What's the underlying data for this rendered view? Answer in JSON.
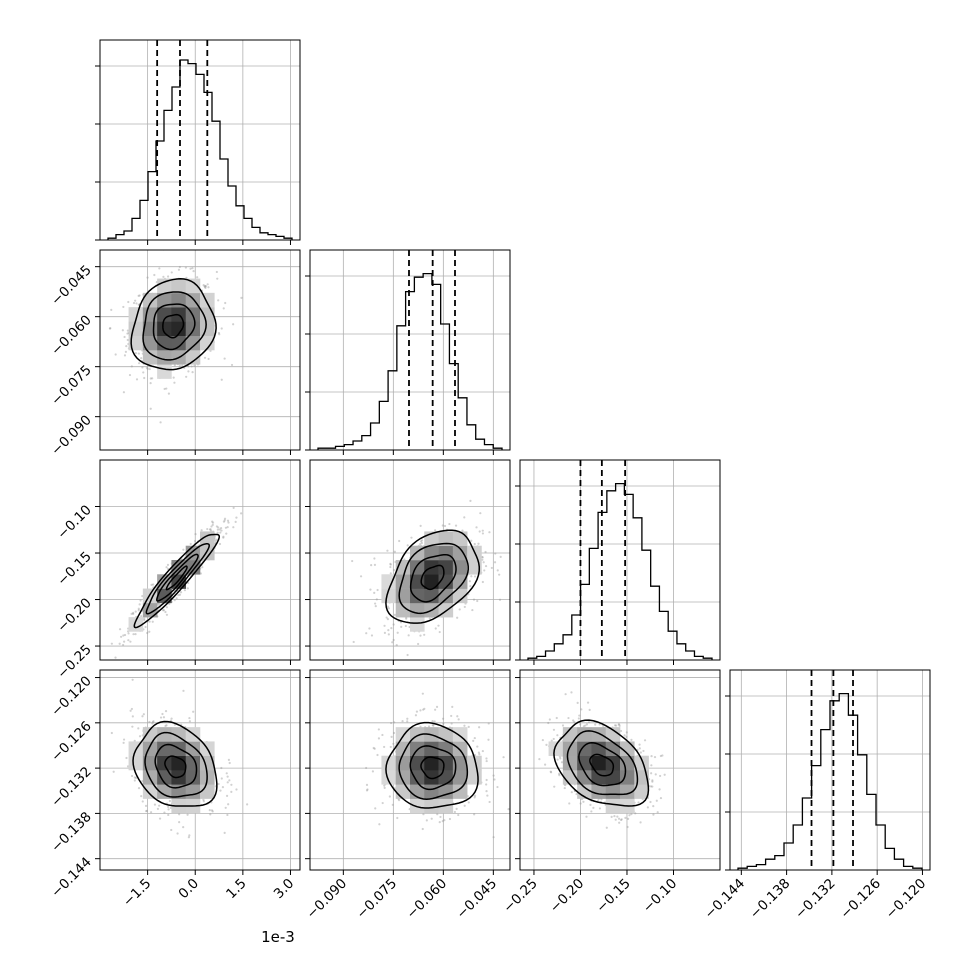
{
  "chart_data": {
    "type": "corner",
    "grid": true,
    "offset_label": "1e-3",
    "parameters": [
      {
        "range": [
          -3.0,
          3.3
        ],
        "xticks": [
          -1.5,
          0.0,
          1.5,
          3.0
        ],
        "xtick_labels": [
          "−1.5",
          "0.0",
          "1.5",
          "3.0"
        ],
        "quantiles": [
          -1.2,
          -0.48,
          0.38
        ],
        "hist": [
          0.01,
          0.03,
          0.05,
          0.12,
          0.22,
          0.38,
          0.55,
          0.72,
          0.85,
          1.0,
          0.98,
          0.92,
          0.82,
          0.66,
          0.45,
          0.3,
          0.19,
          0.12,
          0.07,
          0.04,
          0.03,
          0.02,
          0.01
        ]
      },
      {
        "range": [
          -0.1,
          -0.04
        ],
        "xticks": [
          -0.09,
          -0.075,
          -0.06,
          -0.045
        ],
        "xtick_labels": [
          "−0.090",
          "−0.075",
          "−0.060",
          "−0.045"
        ],
        "yticks": [
          -0.045,
          -0.06,
          -0.075,
          -0.09
        ],
        "ytick_labels": [
          "−0.045",
          "−0.060",
          "−0.075",
          "−0.090"
        ],
        "quantiles": [
          -0.0703,
          -0.0632,
          -0.0565
        ],
        "hist": [
          0.01,
          0.01,
          0.02,
          0.03,
          0.05,
          0.08,
          0.15,
          0.27,
          0.44,
          0.69,
          0.88,
          0.96,
          0.98,
          0.92,
          0.7,
          0.48,
          0.29,
          0.14,
          0.06,
          0.03,
          0.01
        ]
      },
      {
        "range": [
          -0.265,
          -0.05
        ],
        "xticks": [
          -0.25,
          -0.2,
          -0.15,
          -0.1
        ],
        "xtick_labels": [
          "−0.25",
          "−0.20",
          "−0.15",
          "−0.10"
        ],
        "yticks": [
          -0.1,
          -0.15,
          -0.2,
          -0.25
        ],
        "ytick_labels": [
          "−0.10",
          "−0.15",
          "−0.20",
          "−0.25"
        ],
        "quantiles": [
          -0.2,
          -0.177,
          -0.152
        ],
        "hist": [
          0.01,
          0.02,
          0.05,
          0.09,
          0.14,
          0.25,
          0.42,
          0.62,
          0.82,
          0.94,
          0.98,
          0.92,
          0.79,
          0.61,
          0.41,
          0.27,
          0.16,
          0.09,
          0.05,
          0.02,
          0.01
        ]
      },
      {
        "range": [
          -0.1455,
          -0.119
        ],
        "xticks": [
          -0.144,
          -0.138,
          -0.132,
          -0.126,
          -0.12
        ],
        "xtick_labels": [
          "−0.144",
          "−0.138",
          "−0.132",
          "−0.126",
          "−0.120"
        ],
        "yticks": [
          -0.12,
          -0.126,
          -0.132,
          -0.138,
          -0.144
        ],
        "ytick_labels": [
          "−0.120",
          "−0.126",
          "−0.132",
          "−0.138",
          "−0.144"
        ],
        "quantiles": [
          -0.1347,
          -0.1318,
          -0.1292
        ],
        "hist": [
          0.01,
          0.02,
          0.03,
          0.06,
          0.08,
          0.15,
          0.25,
          0.4,
          0.58,
          0.78,
          0.94,
          0.98,
          0.86,
          0.64,
          0.42,
          0.25,
          0.12,
          0.06,
          0.02,
          0.01
        ]
      }
    ],
    "pairs": [
      {
        "row": 1,
        "col": 0,
        "center": [
          -0.7,
          -0.0627
        ],
        "sigma": [
          0.65,
          0.0068
        ],
        "rho": 0.12
      },
      {
        "row": 2,
        "col": 0,
        "center": [
          -0.58,
          -0.177
        ],
        "sigma": [
          0.65,
          0.025
        ],
        "rho": 0.94
      },
      {
        "row": 2,
        "col": 1,
        "center": [
          -0.0632,
          -0.176
        ],
        "sigma": [
          0.0068,
          0.025
        ],
        "rho": 0.38
      },
      {
        "row": 3,
        "col": 0,
        "center": [
          -0.62,
          -0.1318
        ],
        "sigma": [
          0.65,
          0.0028
        ],
        "rho": -0.22
      },
      {
        "row": 3,
        "col": 1,
        "center": [
          -0.0632,
          -0.1319
        ],
        "sigma": [
          0.0068,
          0.0028
        ],
        "rho": -0.05
      },
      {
        "row": 3,
        "col": 2,
        "center": [
          -0.177,
          -0.1316
        ],
        "sigma": [
          0.025,
          0.0028
        ],
        "rho": -0.35
      }
    ]
  }
}
